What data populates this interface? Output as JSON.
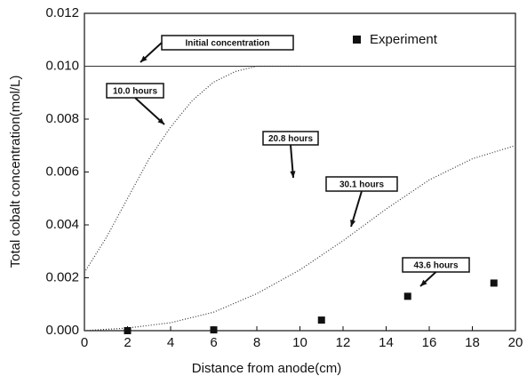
{
  "chart_data": {
    "type": "scatter",
    "xlabel": "Distance from anode(cm)",
    "ylabel": "Total cobalt concentration(mol/L)",
    "xlim": [
      0,
      20
    ],
    "xticks": [
      0,
      2,
      4,
      6,
      8,
      10,
      12,
      14,
      16,
      18,
      20
    ],
    "ylim": [
      0,
      0.012
    ],
    "yticks": [
      {
        "value": 0,
        "label": "0.000"
      },
      {
        "value": 0.002,
        "label": "0.002"
      },
      {
        "value": 0.004,
        "label": "0.004"
      },
      {
        "value": 0.006,
        "label": "0.006"
      },
      {
        "value": 0.008,
        "label": "0.008"
      },
      {
        "value": 0.01,
        "label": "0.010"
      },
      {
        "value": 0.012,
        "label": "0.012"
      }
    ],
    "series": [
      {
        "name": "Experiment",
        "color": "#111111",
        "x": [
          2,
          6,
          11,
          15,
          19
        ],
        "values": [
          0.0,
          3e-05,
          0.0004,
          0.0013,
          0.0018
        ]
      }
    ],
    "curves": [
      {
        "x": [
          0,
          20
        ],
        "values": [
          0.01,
          0.01
        ],
        "style": "solid"
      },
      {
        "x": [
          0,
          1,
          2,
          3,
          4,
          5,
          6,
          7,
          8,
          9,
          10
        ],
        "values": [
          0.0022,
          0.0035,
          0.005,
          0.0065,
          0.0077,
          0.0087,
          0.0094,
          0.0098,
          0.01,
          0.01,
          0.01
        ],
        "style": "dotted"
      },
      {
        "x": [
          0,
          2,
          4,
          6,
          8,
          10,
          12,
          14,
          16,
          18,
          20
        ],
        "values": [
          0,
          0.0001,
          0.0003,
          0.0007,
          0.0014,
          0.0023,
          0.0034,
          0.0046,
          0.0057,
          0.0065,
          0.007
        ],
        "style": "dotted"
      }
    ],
    "annotations": [
      "Initial concentration",
      "10.0 hours",
      "20.8 hours",
      "30.1 hours",
      "43.6 hours"
    ],
    "legend": "upper right"
  }
}
